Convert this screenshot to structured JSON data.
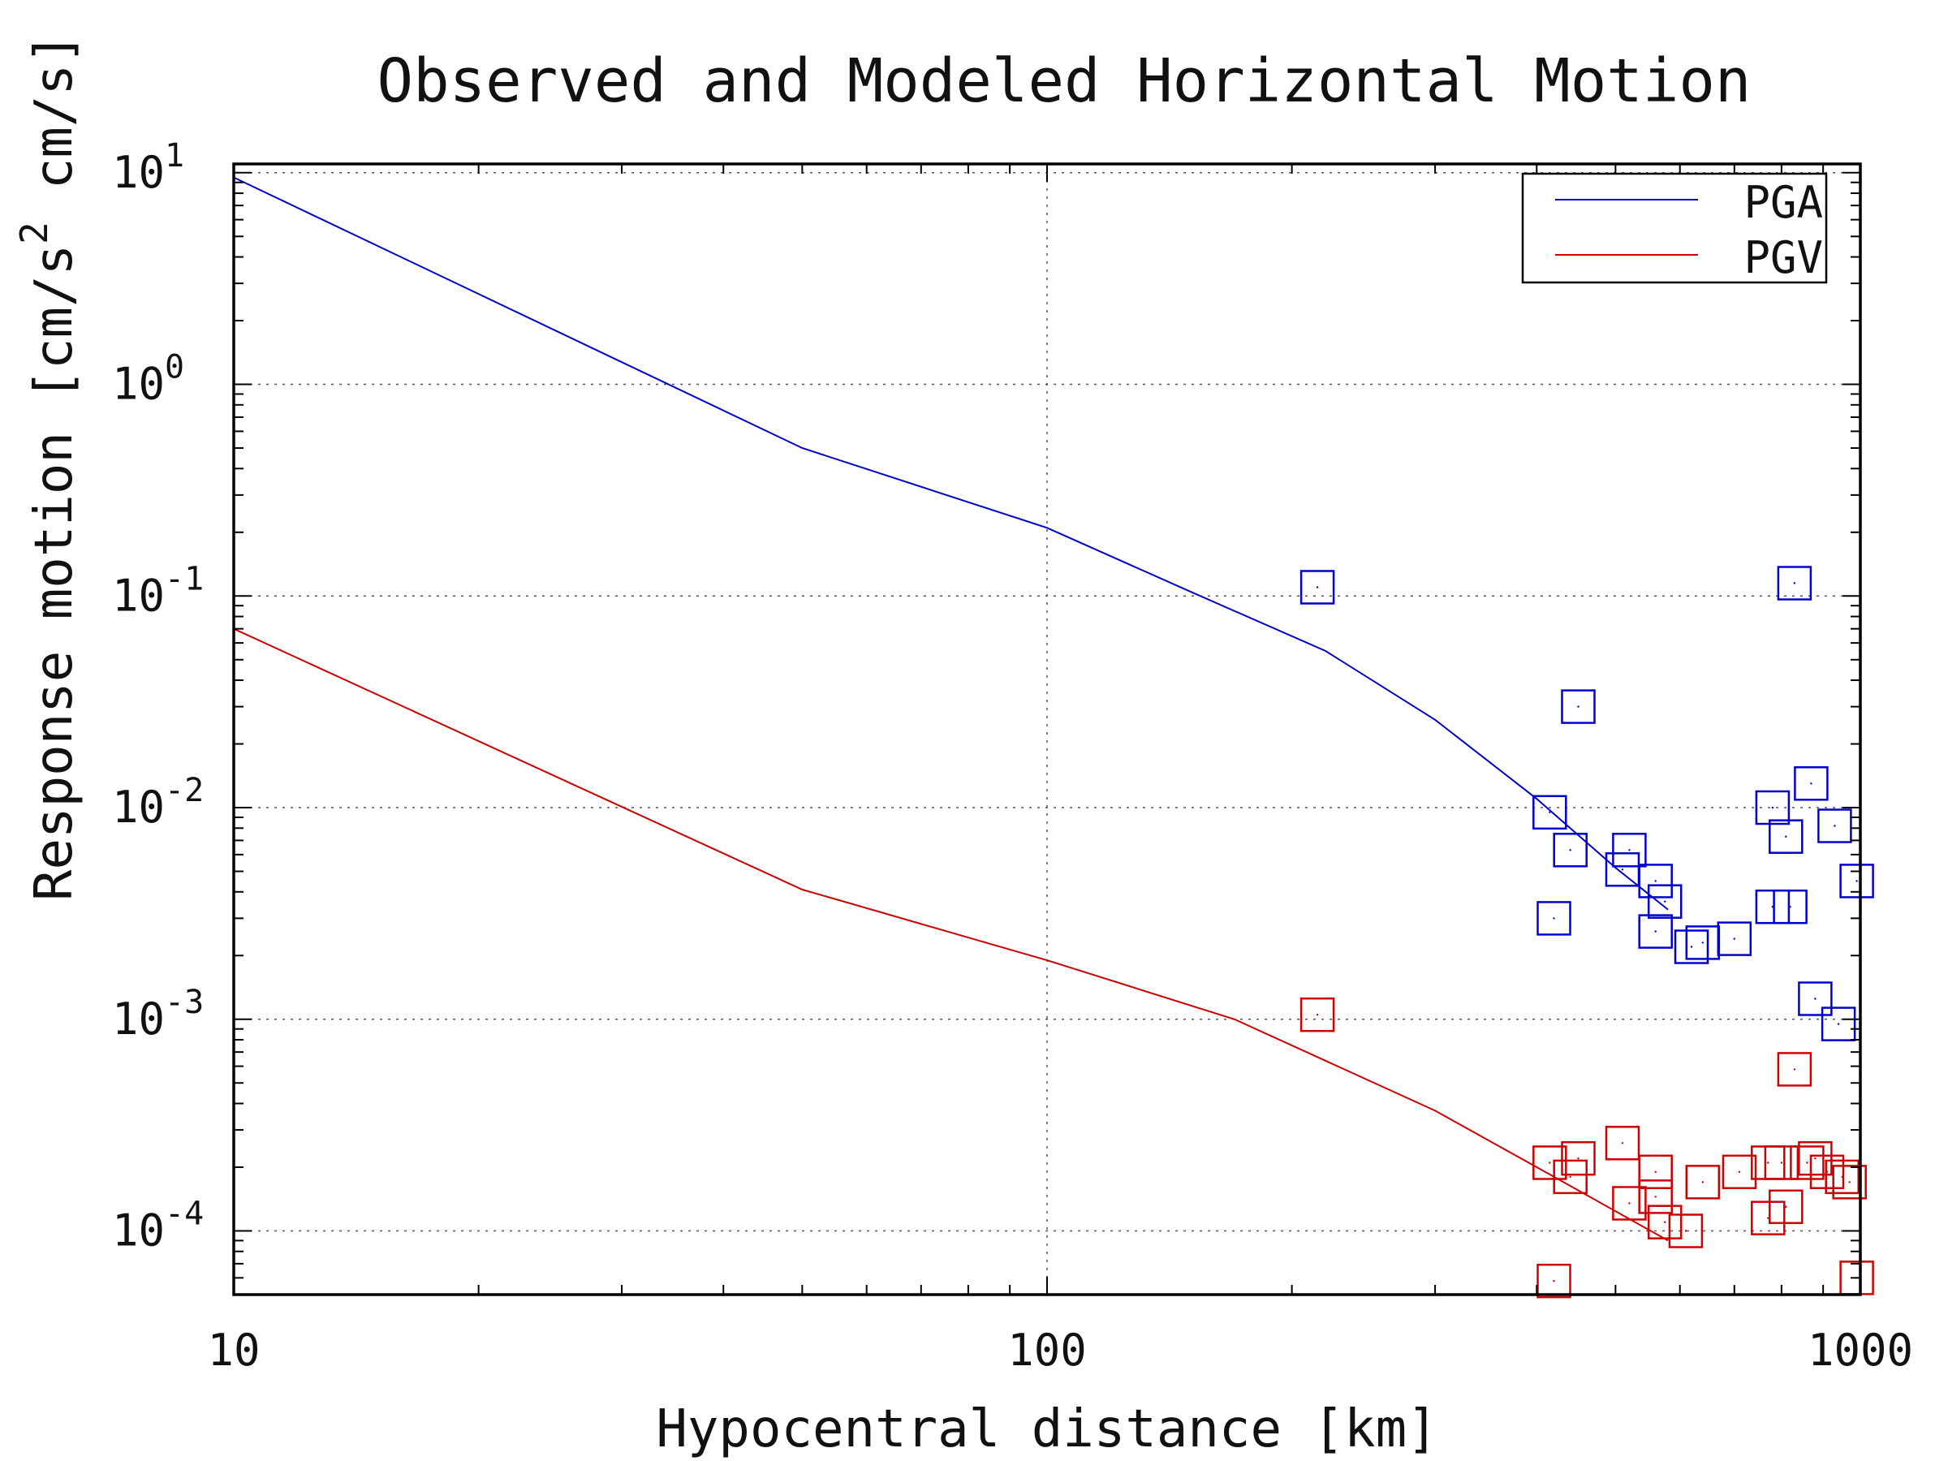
{
  "chart_data": {
    "type": "scatter",
    "title": "Observed and Modeled Horizontal Motion",
    "xlabel": "Hypocentral distance [km]",
    "ylabel": {
      "main": "Response motion [cm/s",
      "superscript": "2",
      "tail": "cm/s]"
    },
    "xscale": "log",
    "yscale": "log",
    "xlim": [
      10,
      1000
    ],
    "ylim": [
      5e-05,
      11
    ],
    "grid": true,
    "legend_position": "top-right",
    "x_ticks": [
      {
        "value": 10,
        "label": "10"
      },
      {
        "value": 100,
        "label": "100"
      },
      {
        "value": 1000,
        "label": "1000"
      }
    ],
    "y_ticks": [
      {
        "value": 10,
        "base": "10",
        "exp": "1"
      },
      {
        "value": 1,
        "base": "10",
        "exp": "0"
      },
      {
        "value": 0.1,
        "base": "10",
        "exp": "-1"
      },
      {
        "value": 0.01,
        "base": "10",
        "exp": "-2"
      },
      {
        "value": 0.001,
        "base": "10",
        "exp": "-3"
      },
      {
        "value": 0.0001,
        "base": "10",
        "exp": "-4"
      }
    ],
    "series": [
      {
        "name": "PGA",
        "color": "#0000cc",
        "curve": [
          {
            "x": 10,
            "y": 9.5
          },
          {
            "x": 50,
            "y": 0.5
          },
          {
            "x": 100,
            "y": 0.21
          },
          {
            "x": 150,
            "y": 0.105
          },
          {
            "x": 220,
            "y": 0.055
          },
          {
            "x": 300,
            "y": 0.026
          },
          {
            "x": 400,
            "y": 0.011
          },
          {
            "x": 500,
            "y": 0.0052
          },
          {
            "x": 580,
            "y": 0.0033
          }
        ],
        "observed": [
          {
            "x": 215,
            "y": 0.11
          },
          {
            "x": 830,
            "y": 0.115
          },
          {
            "x": 450,
            "y": 0.03
          },
          {
            "x": 415,
            "y": 0.0095
          },
          {
            "x": 440,
            "y": 0.0063
          },
          {
            "x": 520,
            "y": 0.0063
          },
          {
            "x": 510,
            "y": 0.0051
          },
          {
            "x": 560,
            "y": 0.0045
          },
          {
            "x": 575,
            "y": 0.0036
          },
          {
            "x": 560,
            "y": 0.0026
          },
          {
            "x": 420,
            "y": 0.003
          },
          {
            "x": 620,
            "y": 0.0022
          },
          {
            "x": 640,
            "y": 0.0023
          },
          {
            "x": 700,
            "y": 0.0024
          },
          {
            "x": 780,
            "y": 0.01
          },
          {
            "x": 810,
            "y": 0.0073
          },
          {
            "x": 870,
            "y": 0.013
          },
          {
            "x": 930,
            "y": 0.0082
          },
          {
            "x": 780,
            "y": 0.0034
          },
          {
            "x": 820,
            "y": 0.0034
          },
          {
            "x": 990,
            "y": 0.0045
          },
          {
            "x": 880,
            "y": 0.00125
          },
          {
            "x": 940,
            "y": 0.00095
          }
        ]
      },
      {
        "name": "PGV",
        "color": "#cc0000",
        "curve": [
          {
            "x": 10,
            "y": 0.07
          },
          {
            "x": 50,
            "y": 0.0041
          },
          {
            "x": 100,
            "y": 0.0019
          },
          {
            "x": 170,
            "y": 0.001
          },
          {
            "x": 300,
            "y": 0.00037
          },
          {
            "x": 400,
            "y": 0.0002
          },
          {
            "x": 580,
            "y": 9e-05
          }
        ],
        "observed": [
          {
            "x": 215,
            "y": 0.00105
          },
          {
            "x": 830,
            "y": 0.00058
          },
          {
            "x": 415,
            "y": 0.00021
          },
          {
            "x": 450,
            "y": 0.00022
          },
          {
            "x": 440,
            "y": 0.00018
          },
          {
            "x": 510,
            "y": 0.00026
          },
          {
            "x": 520,
            "y": 0.000135
          },
          {
            "x": 560,
            "y": 0.00019
          },
          {
            "x": 560,
            "y": 0.000145
          },
          {
            "x": 575,
            "y": 0.00011
          },
          {
            "x": 610,
            "y": 0.0001
          },
          {
            "x": 640,
            "y": 0.00017
          },
          {
            "x": 710,
            "y": 0.00019
          },
          {
            "x": 770,
            "y": 0.00021
          },
          {
            "x": 800,
            "y": 0.00021
          },
          {
            "x": 810,
            "y": 0.00013
          },
          {
            "x": 770,
            "y": 0.000115
          },
          {
            "x": 860,
            "y": 0.00021
          },
          {
            "x": 880,
            "y": 0.00022
          },
          {
            "x": 910,
            "y": 0.00019
          },
          {
            "x": 950,
            "y": 0.00018
          },
          {
            "x": 970,
            "y": 0.00017
          },
          {
            "x": 420,
            "y": 5.8e-05
          },
          {
            "x": 990,
            "y": 6e-05
          }
        ]
      }
    ]
  }
}
